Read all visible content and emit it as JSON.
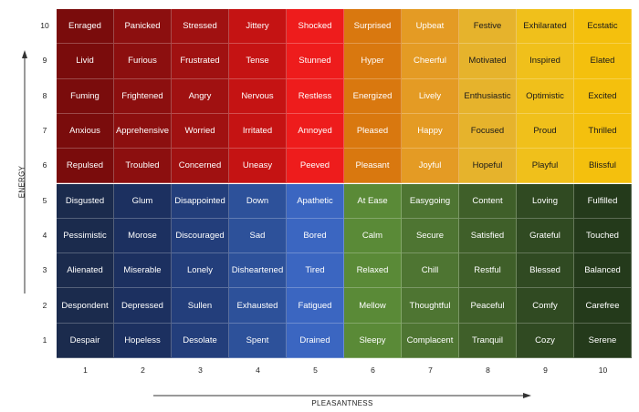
{
  "chart_data": {
    "type": "heatmap",
    "xlabel": "PLEASANTNESS",
    "ylabel": "ENERGY",
    "x_ticks": [
      "1",
      "2",
      "3",
      "4",
      "5",
      "6",
      "7",
      "8",
      "9",
      "10"
    ],
    "y_ticks": [
      "10",
      "9",
      "8",
      "7",
      "6",
      "5",
      "4",
      "3",
      "2",
      "1"
    ],
    "rows": [
      [
        "Enraged",
        "Panicked",
        "Stressed",
        "Jittery",
        "Shocked",
        "Surprised",
        "Upbeat",
        "Festive",
        "Exhilarated",
        "Ecstatic"
      ],
      [
        "Livid",
        "Furious",
        "Frustrated",
        "Tense",
        "Stunned",
        "Hyper",
        "Cheerful",
        "Motivated",
        "Inspired",
        "Elated"
      ],
      [
        "Fuming",
        "Frightened",
        "Angry",
        "Nervous",
        "Restless",
        "Energized",
        "Lively",
        "Enthusiastic",
        "Optimistic",
        "Excited"
      ],
      [
        "Anxious",
        "Apprehensive",
        "Worried",
        "Irritated",
        "Annoyed",
        "Pleased",
        "Happy",
        "Focused",
        "Proud",
        "Thrilled"
      ],
      [
        "Repulsed",
        "Troubled",
        "Concerned",
        "Uneasy",
        "Peeved",
        "Pleasant",
        "Joyful",
        "Hopeful",
        "Playful",
        "Blissful"
      ],
      [
        "Disgusted",
        "Glum",
        "Disappointed",
        "Down",
        "Apathetic",
        "At Ease",
        "Easygoing",
        "Content",
        "Loving",
        "Fulfilled"
      ],
      [
        "Pessimistic",
        "Morose",
        "Discouraged",
        "Sad",
        "Bored",
        "Calm",
        "Secure",
        "Satisfied",
        "Grateful",
        "Touched"
      ],
      [
        "Alienated",
        "Miserable",
        "Lonely",
        "Disheartened",
        "Tired",
        "Relaxed",
        "Chill",
        "Restful",
        "Blessed",
        "Balanced"
      ],
      [
        "Despondent",
        "Depressed",
        "Sullen",
        "Exhausted",
        "Fatigued",
        "Mellow",
        "Thoughtful",
        "Peaceful",
        "Comfy",
        "Carefree"
      ],
      [
        "Despair",
        "Hopeless",
        "Desolate",
        "Spent",
        "Drained",
        "Sleepy",
        "Complacent",
        "Tranquil",
        "Cozy",
        "Serene"
      ]
    ],
    "colors": {
      "red": [
        "#7a0c0c",
        "#8c0f0f",
        "#a01111",
        "#c51313",
        "#ee1c1c"
      ],
      "yellow": [
        "#d9780f",
        "#e49b24",
        "#e6b32c",
        "#f0c01b",
        "#f4c00d"
      ],
      "blue": [
        "#1b2b4d",
        "#1c3060",
        "#233e7b",
        "#2d519a",
        "#3b66c1"
      ],
      "green": [
        "#5a8a37",
        "#4e7532",
        "#3f5f29",
        "#304a22",
        "#243a1b"
      ],
      "light_text": "#ffffff",
      "dark_text": "#1a1a1a"
    },
    "grid": true
  }
}
